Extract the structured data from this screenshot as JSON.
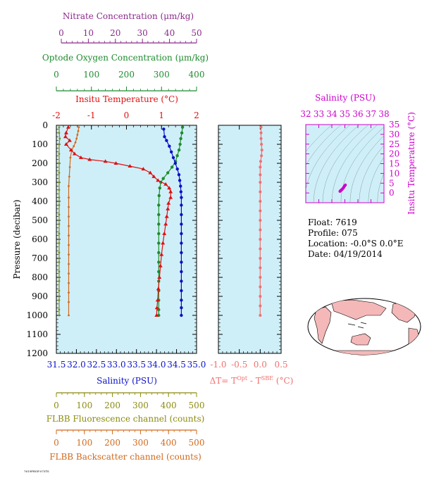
{
  "colors": {
    "nitrate": "#8b2a8b",
    "oxygen": "#1e8b2e",
    "temperature": "#e01010",
    "salinity": "#0a10c8",
    "fluorescence": "#8b8b10",
    "backscatter": "#d2691e",
    "delta_t": "#f07070",
    "panel_bg": "#cfeff8",
    "ts_accent": "#cc00cc"
  },
  "axes": {
    "nitrate_label": "Nitrate Concentration (μm/kg)",
    "nitrate_ticks": [
      "0",
      "10",
      "20",
      "30",
      "40",
      "50"
    ],
    "oxygen_label": "Optode Oxygen Concentration (μm/kg)",
    "oxygen_ticks": [
      "0",
      "100",
      "200",
      "300",
      "400"
    ],
    "temperature_label": "Insitu Temperature (°C)",
    "temperature_ticks": [
      "-2",
      "-1",
      "0",
      "1",
      "2"
    ],
    "pressure_label": "Pressure (decibar)",
    "pressure_ticks": [
      "0",
      "100",
      "200",
      "300",
      "400",
      "500",
      "600",
      "700",
      "800",
      "900",
      "1000",
      "1100",
      "1200"
    ],
    "salinity_label": "Salinity (PSU)",
    "salinity_ticks": [
      "31.5",
      "32.0",
      "32.5",
      "33.0",
      "33.5",
      "34.0",
      "34.5",
      "35.0"
    ],
    "fluor_label": "FLBB Fluorescence channel (counts)",
    "fluor_ticks": [
      "0",
      "100",
      "200",
      "300",
      "400",
      "500"
    ],
    "backscatter_label": "FLBB Backscatter channel (counts)",
    "backscatter_ticks": [
      "0",
      "100",
      "200",
      "300",
      "400",
      "500"
    ],
    "dt_label_main": "ΔT= T",
    "dt_sup1": "Opt",
    "dt_mid": " - T",
    "dt_sup2": "SBE",
    "dt_unit": " (°C)",
    "dt_ticks": [
      "-1.0",
      "-0.5",
      "0.0",
      "0.5"
    ],
    "ts_salinity_label": "Salinity (PSU)",
    "ts_salinity_ticks": [
      "32",
      "33",
      "34",
      "35",
      "36",
      "37",
      "38"
    ],
    "ts_temp_label": "Insitu Temperature (°C)",
    "ts_temp_ticks": [
      "0",
      "5",
      "10",
      "15",
      "20",
      "25",
      "30",
      "35"
    ]
  },
  "info": {
    "float": "Float:  7619",
    "profile": "Profile:  075",
    "location": "Location:  -0.0°S   0.0°E",
    "date": "Date:  04/19/2014"
  },
  "footer": {
    "tiny_text": "7619PROF.075TS"
  },
  "chart_data": [
    {
      "type": "line",
      "name_note": "main profile panel",
      "pressure_range": [
        0,
        1200
      ],
      "temperature_range": [
        -2,
        2
      ],
      "salinity_range": [
        31.5,
        35.0
      ],
      "fluor_range": [
        0,
        500
      ],
      "backscatter_range": [
        0,
        500
      ],
      "oxygen_range": [
        0,
        400
      ],
      "temperature": [
        [
          -1.66,
          10
        ],
        [
          -1.72,
          40
        ],
        [
          -1.74,
          60
        ],
        [
          -1.62,
          80
        ],
        [
          -1.72,
          100
        ],
        [
          -1.58,
          130
        ],
        [
          -1.48,
          150
        ],
        [
          -1.3,
          170
        ],
        [
          -1.05,
          180
        ],
        [
          -0.6,
          190
        ],
        [
          -0.3,
          200
        ],
        [
          0.1,
          215
        ],
        [
          0.48,
          230
        ],
        [
          0.68,
          250
        ],
        [
          0.78,
          270
        ],
        [
          0.9,
          290
        ],
        [
          1.12,
          310
        ],
        [
          1.22,
          330
        ],
        [
          1.26,
          350
        ],
        [
          1.26,
          380
        ],
        [
          1.2,
          410
        ],
        [
          1.18,
          440
        ],
        [
          1.15,
          480
        ],
        [
          1.12,
          520
        ],
        [
          1.08,
          570
        ],
        [
          1.04,
          620
        ],
        [
          1.0,
          680
        ],
        [
          0.97,
          740
        ],
        [
          0.94,
          800
        ],
        [
          0.91,
          860
        ],
        [
          0.89,
          920
        ],
        [
          0.87,
          960
        ],
        [
          0.86,
          1000
        ]
      ],
      "salinity": [
        [
          34.18,
          20
        ],
        [
          34.2,
          60
        ],
        [
          34.25,
          80
        ],
        [
          34.32,
          110
        ],
        [
          34.37,
          140
        ],
        [
          34.42,
          170
        ],
        [
          34.47,
          200
        ],
        [
          34.52,
          230
        ],
        [
          34.56,
          260
        ],
        [
          34.58,
          290
        ],
        [
          34.6,
          320
        ],
        [
          34.61,
          350
        ],
        [
          34.62,
          380
        ],
        [
          34.62,
          420
        ],
        [
          34.62,
          470
        ],
        [
          34.62,
          520
        ],
        [
          34.62,
          570
        ],
        [
          34.62,
          620
        ],
        [
          34.62,
          670
        ],
        [
          34.62,
          720
        ],
        [
          34.62,
          770
        ],
        [
          34.62,
          820
        ],
        [
          34.62,
          870
        ],
        [
          34.62,
          920
        ],
        [
          34.62,
          960
        ],
        [
          34.62,
          1000
        ]
      ],
      "oxygen": [
        [
          360,
          10
        ],
        [
          358,
          40
        ],
        [
          355,
          70
        ],
        [
          353,
          100
        ],
        [
          350,
          130
        ],
        [
          345,
          160
        ],
        [
          340,
          190
        ],
        [
          330,
          220
        ],
        [
          318,
          250
        ],
        [
          305,
          280
        ],
        [
          298,
          300
        ],
        [
          295,
          330
        ],
        [
          293,
          370
        ],
        [
          292,
          420
        ],
        [
          292,
          470
        ],
        [
          292,
          520
        ],
        [
          292,
          570
        ],
        [
          292,
          620
        ],
        [
          292,
          670
        ],
        [
          292,
          720
        ],
        [
          292,
          770
        ],
        [
          292,
          820
        ],
        [
          292,
          870
        ],
        [
          292,
          920
        ],
        [
          292,
          970
        ],
        [
          292,
          1000
        ]
      ],
      "fluorescence": [
        [
          10,
          10
        ],
        [
          10,
          40
        ],
        [
          12,
          70
        ],
        [
          10,
          100
        ],
        [
          10,
          150
        ],
        [
          10,
          200
        ],
        [
          10,
          250
        ],
        [
          10,
          300
        ],
        [
          10,
          340
        ],
        [
          10,
          380
        ],
        [
          10,
          420
        ],
        [
          10,
          470
        ],
        [
          10,
          520
        ],
        [
          10,
          570
        ],
        [
          10,
          620
        ],
        [
          10,
          670
        ],
        [
          10,
          720
        ],
        [
          10,
          770
        ],
        [
          10,
          820
        ],
        [
          10,
          870
        ],
        [
          10,
          920
        ],
        [
          10,
          970
        ],
        [
          10,
          1000
        ]
      ],
      "backscatter": [
        [
          80,
          10
        ],
        [
          78,
          30
        ],
        [
          75,
          50
        ],
        [
          72,
          70
        ],
        [
          68,
          90
        ],
        [
          62,
          110
        ],
        [
          55,
          130
        ],
        [
          50,
          170
        ],
        [
          48,
          220
        ],
        [
          46,
          270
        ],
        [
          44,
          320
        ],
        [
          44,
          380
        ],
        [
          44,
          430
        ],
        [
          44,
          480
        ],
        [
          44,
          530
        ],
        [
          44,
          580
        ],
        [
          44,
          630
        ],
        [
          44,
          680
        ],
        [
          44,
          730
        ],
        [
          44,
          780
        ],
        [
          44,
          830
        ],
        [
          44,
          880
        ],
        [
          44,
          930
        ],
        [
          44,
          1000
        ]
      ]
    },
    {
      "type": "line",
      "name_note": "delta T panel",
      "x_range": [
        -1.0,
        0.5
      ],
      "pressure_range": [
        0,
        1200
      ],
      "values": [
        [
          0.02,
          10
        ],
        [
          0.02,
          40
        ],
        [
          0.02,
          70
        ],
        [
          0.03,
          100
        ],
        [
          0.04,
          130
        ],
        [
          0.03,
          160
        ],
        [
          0.01,
          190
        ],
        [
          0.0,
          220
        ],
        [
          0.0,
          260
        ],
        [
          0.0,
          300
        ],
        [
          0.0,
          350
        ],
        [
          0.0,
          400
        ],
        [
          0.0,
          450
        ],
        [
          0.0,
          500
        ],
        [
          0.0,
          550
        ],
        [
          0.0,
          600
        ],
        [
          0.0,
          650
        ],
        [
          0.0,
          700
        ],
        [
          0.0,
          750
        ],
        [
          0.0,
          800
        ],
        [
          0.0,
          850
        ],
        [
          0.0,
          900
        ],
        [
          0.0,
          950
        ],
        [
          0.0,
          1000
        ]
      ]
    },
    {
      "type": "scatter",
      "name_note": "T-S diagram",
      "salinity_range": [
        32,
        38
      ],
      "temperature_range": [
        -5,
        35
      ],
      "values": [
        [
          34.62,
          0.8
        ],
        [
          34.65,
          1.0
        ],
        [
          34.7,
          1.4
        ],
        [
          34.78,
          1.8
        ],
        [
          34.86,
          2.4
        ],
        [
          34.92,
          3.0
        ],
        [
          34.98,
          3.6
        ],
        [
          35.04,
          4.1
        ]
      ]
    }
  ]
}
